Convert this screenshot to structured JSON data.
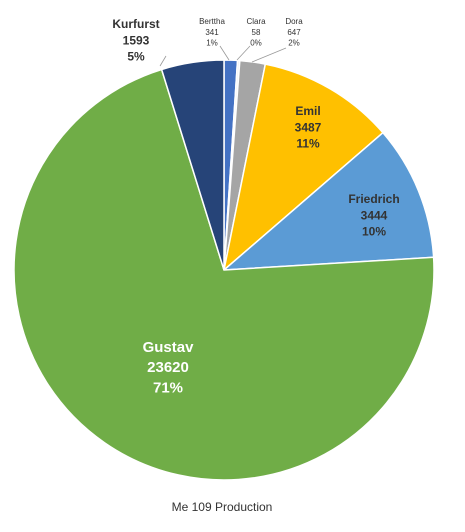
{
  "chart_data": {
    "type": "pie",
    "title": "Me 109 Production",
    "categories": [
      "Berttha",
      "Clara",
      "Dora",
      "Emil",
      "Friedrich",
      "Gustav",
      "Kurfurst"
    ],
    "values": [
      341,
      58,
      647,
      3487,
      3444,
      23620,
      1593
    ],
    "percent_labels": [
      "1%",
      "0%",
      "2%",
      "11%",
      "10%",
      "71%",
      "5%"
    ],
    "colors": [
      "#4472c4",
      "#f2f2f2",
      "#a5a5a5",
      "#ffc000",
      "#5b9bd5",
      "#70ad47",
      "#264478"
    ]
  }
}
